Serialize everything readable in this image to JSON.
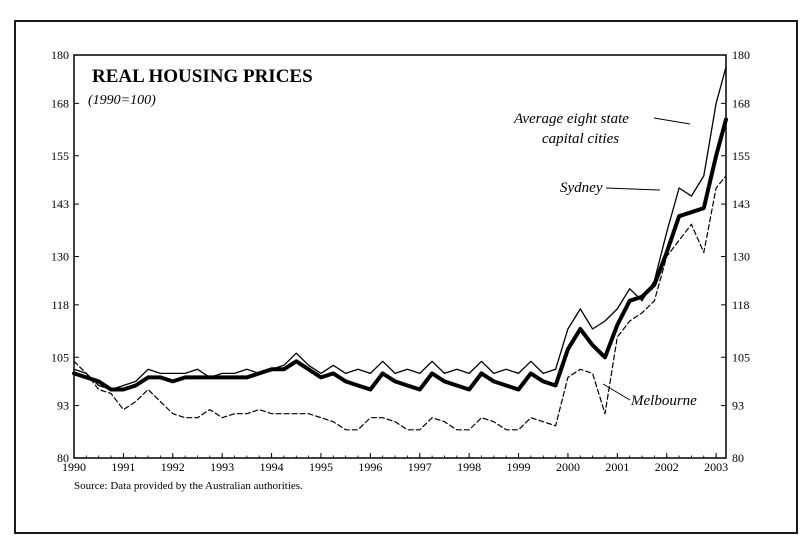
{
  "chart_data": {
    "type": "line",
    "title": "REAL HOUSING PRICES",
    "subtitle": "(1990=100)",
    "source": "Source: Data provided by the Australian authorities.",
    "xlabel": "",
    "ylabel": "",
    "x_ticks": [
      "1990",
      "1991",
      "1992",
      "1993",
      "1994",
      "1995",
      "1996",
      "1997",
      "1998",
      "1999",
      "2000",
      "2001",
      "2002",
      "2003"
    ],
    "y_ticks_left": [
      "80",
      "93",
      "105",
      "118",
      "130",
      "143",
      "155",
      "168",
      "180"
    ],
    "y_ticks_right": [
      "80",
      "93",
      "105",
      "118",
      "130",
      "143",
      "155",
      "168",
      "180"
    ],
    "xlim": [
      1990,
      2003.2
    ],
    "ylim": [
      80,
      180
    ],
    "grid": false,
    "annotations": {
      "average": [
        "Average eight state",
        "capital cities"
      ],
      "sydney": "Sydney",
      "melbourne": "Melbourne"
    },
    "series": [
      {
        "name": "Sydney",
        "style": "thin-solid",
        "color": "#000000",
        "points": [
          [
            1990,
            102
          ],
          [
            1990.25,
            101
          ],
          [
            1990.5,
            98
          ],
          [
            1990.75,
            97
          ],
          [
            1991,
            98
          ],
          [
            1991.25,
            99
          ],
          [
            1991.5,
            102
          ],
          [
            1991.75,
            101
          ],
          [
            1992,
            101
          ],
          [
            1992.25,
            101
          ],
          [
            1992.5,
            102
          ],
          [
            1992.75,
            100
          ],
          [
            1993,
            101
          ],
          [
            1993.25,
            101
          ],
          [
            1993.5,
            102
          ],
          [
            1993.75,
            101
          ],
          [
            1994,
            102
          ],
          [
            1994.25,
            103
          ],
          [
            1994.5,
            106
          ],
          [
            1994.75,
            103
          ],
          [
            1995,
            101
          ],
          [
            1995.25,
            103
          ],
          [
            1995.5,
            101
          ],
          [
            1995.75,
            102
          ],
          [
            1996,
            101
          ],
          [
            1996.25,
            104
          ],
          [
            1996.5,
            101
          ],
          [
            1996.75,
            102
          ],
          [
            1997,
            101
          ],
          [
            1997.25,
            104
          ],
          [
            1997.5,
            101
          ],
          [
            1997.75,
            102
          ],
          [
            1998,
            101
          ],
          [
            1998.25,
            104
          ],
          [
            1998.5,
            101
          ],
          [
            1998.75,
            102
          ],
          [
            1999,
            101
          ],
          [
            1999.25,
            104
          ],
          [
            1999.5,
            101
          ],
          [
            1999.75,
            102
          ],
          [
            2000,
            112
          ],
          [
            2000.25,
            117
          ],
          [
            2000.5,
            112
          ],
          [
            2000.75,
            114
          ],
          [
            2001,
            117
          ],
          [
            2001.25,
            122
          ],
          [
            2001.5,
            119
          ],
          [
            2001.75,
            124
          ],
          [
            2002,
            136
          ],
          [
            2002.25,
            147
          ],
          [
            2002.5,
            145
          ],
          [
            2002.75,
            150
          ],
          [
            2003,
            168
          ],
          [
            2003.2,
            177
          ]
        ]
      },
      {
        "name": "Average eight state capital cities",
        "style": "thick-solid",
        "color": "#000000",
        "points": [
          [
            1990,
            101
          ],
          [
            1990.25,
            100
          ],
          [
            1990.5,
            99
          ],
          [
            1990.75,
            97
          ],
          [
            1991,
            97
          ],
          [
            1991.25,
            98
          ],
          [
            1991.5,
            100
          ],
          [
            1991.75,
            100
          ],
          [
            1992,
            99
          ],
          [
            1992.25,
            100
          ],
          [
            1992.5,
            100
          ],
          [
            1992.75,
            100
          ],
          [
            1993,
            100
          ],
          [
            1993.25,
            100
          ],
          [
            1993.5,
            100
          ],
          [
            1993.75,
            101
          ],
          [
            1994,
            102
          ],
          [
            1994.25,
            102
          ],
          [
            1994.5,
            104
          ],
          [
            1994.75,
            102
          ],
          [
            1995,
            100
          ],
          [
            1995.25,
            101
          ],
          [
            1995.5,
            99
          ],
          [
            1995.75,
            98
          ],
          [
            1996,
            97
          ],
          [
            1996.25,
            101
          ],
          [
            1996.5,
            99
          ],
          [
            1996.75,
            98
          ],
          [
            1997,
            97
          ],
          [
            1997.25,
            101
          ],
          [
            1997.5,
            99
          ],
          [
            1997.75,
            98
          ],
          [
            1998,
            97
          ],
          [
            1998.25,
            101
          ],
          [
            1998.5,
            99
          ],
          [
            1998.75,
            98
          ],
          [
            1999,
            97
          ],
          [
            1999.25,
            101
          ],
          [
            1999.5,
            99
          ],
          [
            1999.75,
            98
          ],
          [
            2000,
            107
          ],
          [
            2000.25,
            112
          ],
          [
            2000.5,
            108
          ],
          [
            2000.75,
            105
          ],
          [
            2001,
            113
          ],
          [
            2001.25,
            119
          ],
          [
            2001.5,
            120
          ],
          [
            2001.75,
            123
          ],
          [
            2002,
            131
          ],
          [
            2002.25,
            140
          ],
          [
            2002.5,
            141
          ],
          [
            2002.75,
            142
          ],
          [
            2003,
            155
          ],
          [
            2003.2,
            164
          ]
        ]
      },
      {
        "name": "Melbourne",
        "style": "dashed",
        "color": "#000000",
        "points": [
          [
            1990,
            104
          ],
          [
            1990.25,
            101
          ],
          [
            1990.5,
            97
          ],
          [
            1990.75,
            96
          ],
          [
            1991,
            92
          ],
          [
            1991.25,
            94
          ],
          [
            1991.5,
            97
          ],
          [
            1991.75,
            94
          ],
          [
            1992,
            91
          ],
          [
            1992.25,
            90
          ],
          [
            1992.5,
            90
          ],
          [
            1992.75,
            92
          ],
          [
            1993,
            90
          ],
          [
            1993.25,
            91
          ],
          [
            1993.5,
            91
          ],
          [
            1993.75,
            92
          ],
          [
            1994,
            91
          ],
          [
            1994.25,
            91
          ],
          [
            1994.5,
            91
          ],
          [
            1994.75,
            91
          ],
          [
            1995,
            90
          ],
          [
            1995.25,
            89
          ],
          [
            1995.5,
            87
          ],
          [
            1995.75,
            87
          ],
          [
            1996,
            90
          ],
          [
            1996.25,
            90
          ],
          [
            1996.5,
            89
          ],
          [
            1996.75,
            87
          ],
          [
            1997,
            87
          ],
          [
            1997.25,
            90
          ],
          [
            1997.5,
            89
          ],
          [
            1997.75,
            87
          ],
          [
            1998,
            87
          ],
          [
            1998.25,
            90
          ],
          [
            1998.5,
            89
          ],
          [
            1998.75,
            87
          ],
          [
            1999,
            87
          ],
          [
            1999.25,
            90
          ],
          [
            1999.5,
            89
          ],
          [
            1999.75,
            88
          ],
          [
            2000,
            100
          ],
          [
            2000.25,
            102
          ],
          [
            2000.5,
            101
          ],
          [
            2000.75,
            91
          ],
          [
            2001,
            110
          ],
          [
            2001.25,
            114
          ],
          [
            2001.5,
            116
          ],
          [
            2001.75,
            119
          ],
          [
            2002,
            130
          ],
          [
            2002.25,
            134
          ],
          [
            2002.5,
            138
          ],
          [
            2002.75,
            131
          ],
          [
            2003,
            147
          ],
          [
            2003.2,
            150
          ]
        ]
      }
    ]
  }
}
